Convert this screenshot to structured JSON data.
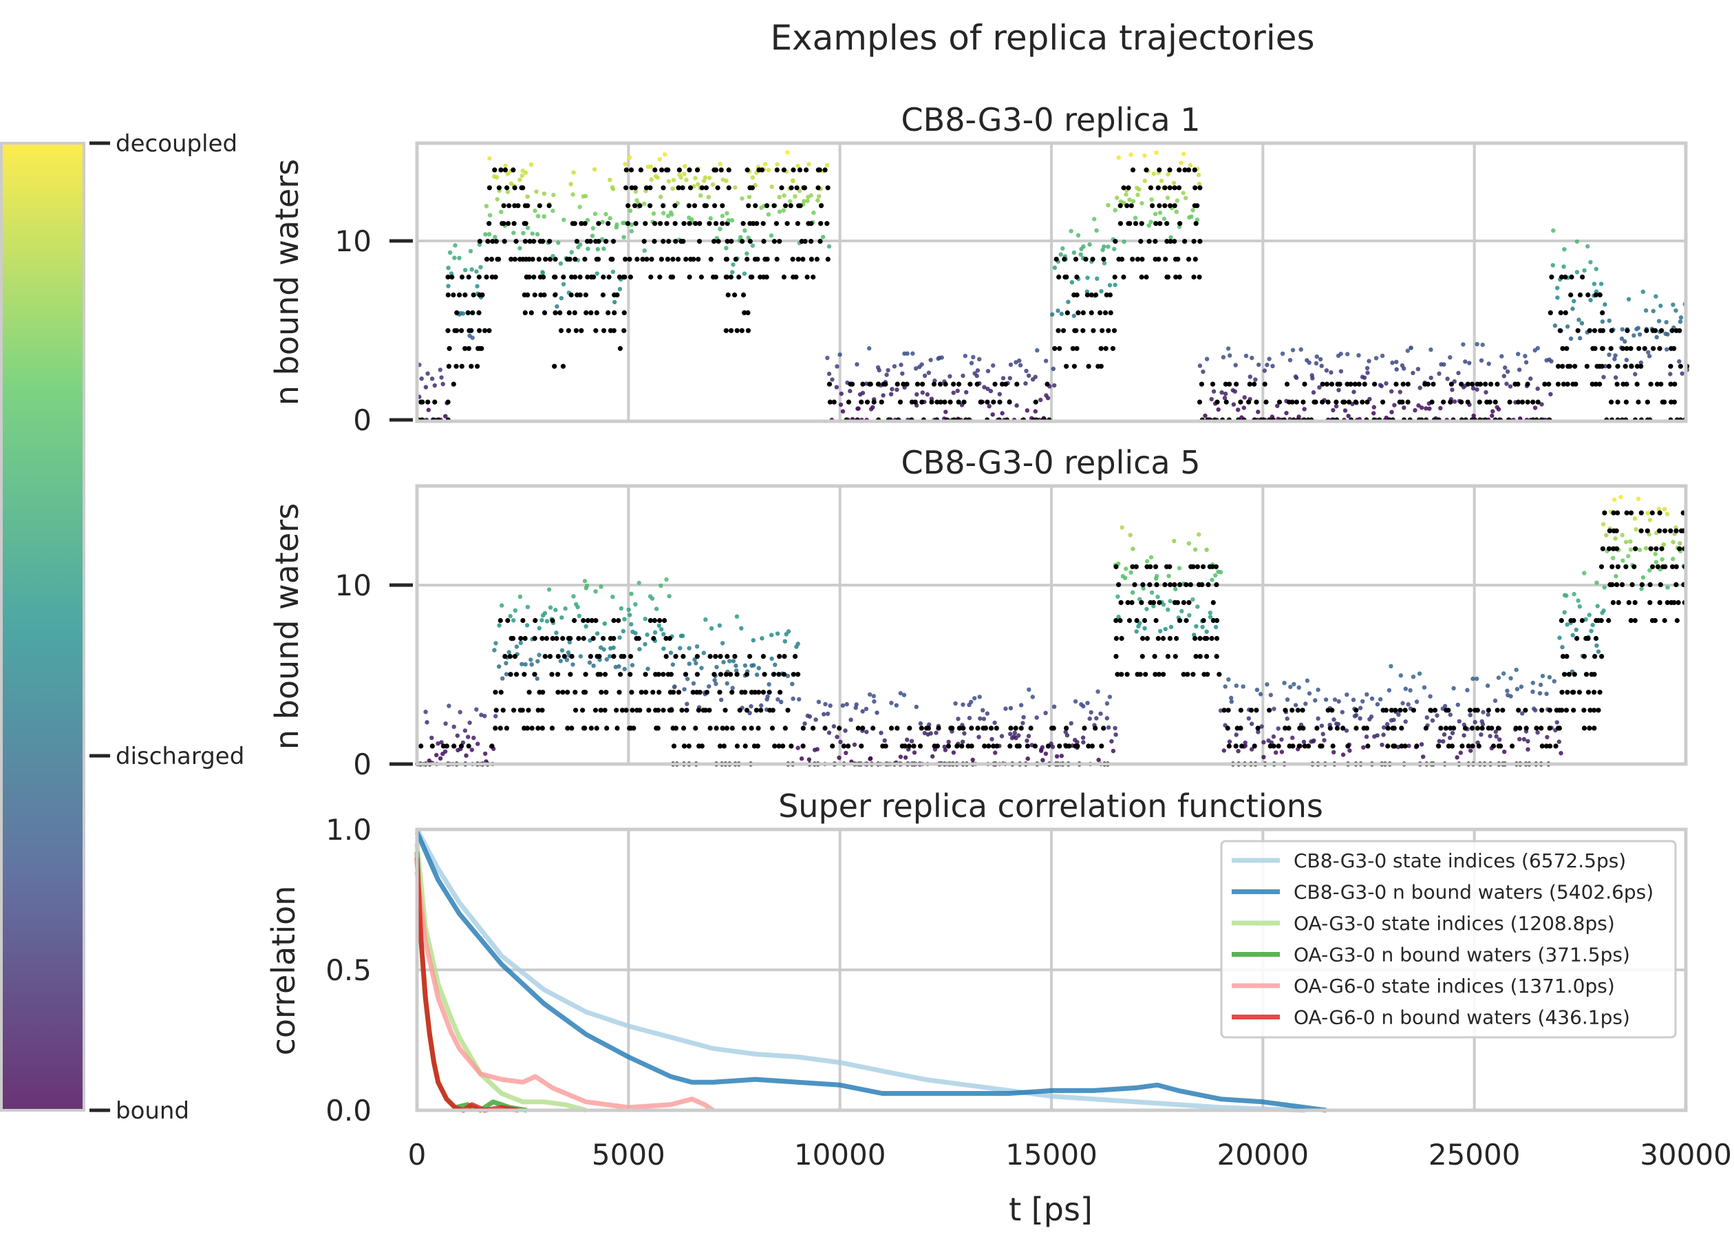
{
  "suptitle": "Examples of replica trajectories",
  "colorbar": {
    "ticks": [
      "decoupled",
      "discharged",
      "bound"
    ],
    "colors": [
      "#440154",
      "#3b528b",
      "#21918c",
      "#5ec962",
      "#fde725"
    ]
  },
  "chart_data": [
    {
      "type": "scatter",
      "title": "CB8-G3-0 replica 1",
      "ylabel": "n bound waters",
      "xlim": [
        0,
        30000
      ],
      "ylim": [
        0,
        15.5
      ],
      "yticks": [
        "0",
        "10"
      ],
      "grid": true,
      "colormap": "viridis",
      "markers": "black dots = n bound waters per frame",
      "segments": [
        {
          "x": [
            0,
            700
          ],
          "state": 0.05
        },
        {
          "x": [
            700,
            1400
          ],
          "state": 0.55
        },
        {
          "x": [
            1400,
            1700
          ],
          "state": 0.7
        },
        {
          "x": [
            1700,
            2500
          ],
          "state": 1.0
        },
        {
          "x": [
            2500,
            3200
          ],
          "state": 0.85
        },
        {
          "x": [
            3200,
            3600
          ],
          "state": 0.65
        },
        {
          "x": [
            3600,
            4600
          ],
          "state": 0.8
        },
        {
          "x": [
            4600,
            4900
          ],
          "state": 0.7
        },
        {
          "x": [
            4900,
            7300
          ],
          "state": 1.0
        },
        {
          "x": [
            7300,
            7800
          ],
          "state": 0.75
        },
        {
          "x": [
            7800,
            9700
          ],
          "state": 1.0
        },
        {
          "x": [
            9700,
            15000
          ],
          "state": 0.12
        },
        {
          "x": [
            15000,
            16500
          ],
          "state": 0.65
        },
        {
          "x": [
            16500,
            18500
          ],
          "state": 1.0
        },
        {
          "x": [
            18500,
            26800
          ],
          "state": 0.12
        },
        {
          "x": [
            26800,
            28000
          ],
          "state": 0.55
        },
        {
          "x": [
            28000,
            30000
          ],
          "state": 0.35
        }
      ]
    },
    {
      "type": "scatter",
      "title": "CB8-G3-0 replica 5",
      "ylabel": "n bound waters",
      "xlim": [
        0,
        30000
      ],
      "ylim": [
        0,
        15.5
      ],
      "yticks": [
        "0",
        "10"
      ],
      "grid": true,
      "colormap": "viridis",
      "markers": "black dots = n bound waters per frame",
      "segments": [
        {
          "x": [
            0,
            1800
          ],
          "state": 0.08
        },
        {
          "x": [
            1800,
            5000
          ],
          "state": 0.55
        },
        {
          "x": [
            5000,
            6000
          ],
          "state": 0.6
        },
        {
          "x": [
            6000,
            9000
          ],
          "state": 0.4
        },
        {
          "x": [
            9000,
            16500
          ],
          "state": 0.12
        },
        {
          "x": [
            16500,
            19000
          ],
          "state": 0.75
        },
        {
          "x": [
            19000,
            27000
          ],
          "state": 0.2
        },
        {
          "x": [
            27000,
            28000
          ],
          "state": 0.6
        },
        {
          "x": [
            28000,
            30000
          ],
          "state": 1.0
        }
      ]
    },
    {
      "type": "line",
      "title": "Super replica correlation functions",
      "xlabel": "t [ps]",
      "ylabel": "correlation",
      "xlim": [
        0,
        30000
      ],
      "ylim": [
        0,
        1.0
      ],
      "xticks": [
        "0",
        "5000",
        "10000",
        "15000",
        "20000",
        "25000",
        "30000"
      ],
      "yticks": [
        "0.0",
        "0.5",
        "1.0"
      ],
      "grid": true,
      "legend": "top-right",
      "series": [
        {
          "name": "CB8-G3-0 state indices (6572.5ps)",
          "color": "#a6cee3",
          "x": [
            0,
            500,
            1000,
            2000,
            3000,
            4000,
            5000,
            6000,
            7000,
            8000,
            9000,
            10000,
            11000,
            12000,
            13000,
            14000,
            15000,
            16000,
            17000,
            18000,
            19000,
            20000,
            21000
          ],
          "y": [
            1.0,
            0.86,
            0.74,
            0.55,
            0.43,
            0.35,
            0.3,
            0.26,
            0.22,
            0.2,
            0.19,
            0.17,
            0.14,
            0.11,
            0.09,
            0.07,
            0.05,
            0.04,
            0.03,
            0.02,
            0.01,
            0.005,
            0.0
          ]
        },
        {
          "name": "CB8-G3-0 n bound waters (5402.6ps)",
          "color": "#1f78b4",
          "x": [
            0,
            500,
            1000,
            2000,
            3000,
            4000,
            5000,
            6000,
            6500,
            7000,
            8000,
            9000,
            10000,
            11000,
            12000,
            13000,
            14000,
            15000,
            16000,
            17000,
            17500,
            18000,
            19000,
            20000,
            21000,
            21500
          ],
          "y": [
            0.99,
            0.82,
            0.7,
            0.52,
            0.38,
            0.27,
            0.19,
            0.12,
            0.1,
            0.1,
            0.11,
            0.1,
            0.09,
            0.06,
            0.06,
            0.06,
            0.06,
            0.07,
            0.07,
            0.08,
            0.09,
            0.07,
            0.04,
            0.03,
            0.01,
            0.0
          ]
        },
        {
          "name": "OA-G3-0 state indices (1208.8ps)",
          "color": "#b2df8a",
          "x": [
            0,
            200,
            500,
            800,
            1000,
            1500,
            2000,
            2500,
            3000,
            3500,
            4000
          ],
          "y": [
            0.95,
            0.65,
            0.45,
            0.33,
            0.26,
            0.13,
            0.06,
            0.03,
            0.03,
            0.02,
            0.0
          ]
        },
        {
          "name": "OA-G3-0 n bound waters (371.5ps)",
          "color": "#33a02c",
          "x": [
            0,
            100,
            200,
            300,
            400,
            500,
            700,
            900,
            1200,
            1500,
            1800,
            2200,
            2600
          ],
          "y": [
            0.92,
            0.6,
            0.4,
            0.27,
            0.17,
            0.1,
            0.04,
            0.01,
            0.02,
            0.0,
            0.03,
            0.01,
            0.0
          ]
        },
        {
          "name": "OA-G6-0 state indices (1371.0ps)",
          "color": "#fb9a99",
          "x": [
            0,
            200,
            500,
            800,
            1000,
            1500,
            2000,
            2500,
            2800,
            3200,
            4000,
            5000,
            6000,
            6500,
            6800,
            7000
          ],
          "y": [
            0.85,
            0.6,
            0.4,
            0.28,
            0.22,
            0.13,
            0.11,
            0.1,
            0.12,
            0.08,
            0.03,
            0.01,
            0.02,
            0.04,
            0.02,
            0.0
          ]
        },
        {
          "name": "OA-G6-0 n bound waters (436.1ps)",
          "color": "#e31a1c",
          "x": [
            0,
            100,
            200,
            300,
            400,
            500,
            700,
            900,
            1100,
            1300,
            1600,
            2000,
            2400
          ],
          "y": [
            0.9,
            0.6,
            0.4,
            0.27,
            0.17,
            0.1,
            0.04,
            0.01,
            0.0,
            0.02,
            0.0,
            0.01,
            0.0
          ]
        }
      ]
    }
  ]
}
